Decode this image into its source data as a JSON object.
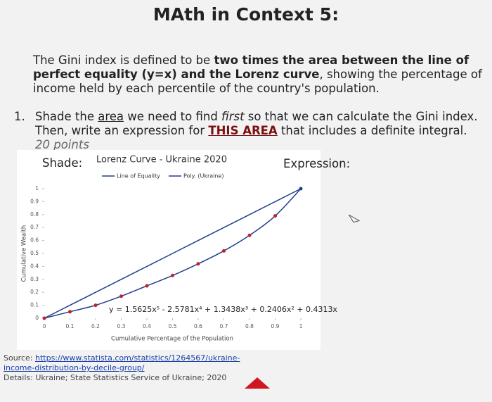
{
  "header": {
    "title": "MAth in Context 5:"
  },
  "intro": {
    "segments": [
      {
        "text": "The Gini index is defined to be ",
        "style": "normal"
      },
      {
        "text": "two times the area between the line of perfect equality (y=x) and the Lorenz curve",
        "style": "bold"
      },
      {
        "text": ", showing the percentage of income held by each percentile of the country's population.",
        "style": "normal"
      }
    ]
  },
  "question": {
    "number": "1.",
    "segments": [
      {
        "text": "Shade the ",
        "style": "normal"
      },
      {
        "text": "area",
        "style": "underline"
      },
      {
        "text": " we need to find ",
        "style": "normal"
      },
      {
        "text": "first",
        "style": "italic"
      },
      {
        "text": " so that we can calculate the Gini index.  Then, write an expression for ",
        "style": "normal"
      },
      {
        "text": "THIS AREA",
        "style": "bold-underline"
      },
      {
        "text": " that includes a definite integral. ",
        "style": "normal"
      },
      {
        "text": "20 points",
        "style": "italic-gray"
      }
    ],
    "shade_label": "Shade:",
    "expression_label": "Expression:"
  },
  "chart": {
    "type": "line",
    "title": "Lorenz Curve - Ukraine 2020",
    "x_label": "Cumulative Percentage of the Population",
    "y_label": "Cumulative Wealth",
    "equation": "y = 1.5625x⁵ - 2.5781x⁴ + 1.3438x³ + 0.2406x² + 0.4313x",
    "x": [
      0,
      0.1,
      0.2,
      0.3,
      0.4,
      0.5,
      0.6,
      0.7,
      0.8,
      0.9,
      1
    ],
    "series": [
      {
        "name": "Line of Equality",
        "color": "#1f3f8f",
        "values": [
          0,
          0.1,
          0.2,
          0.3,
          0.4,
          0.5,
          0.6,
          0.7,
          0.8,
          0.9,
          1
        ]
      },
      {
        "name": "Poly. (Ukraine)",
        "color": "#1f3f8f",
        "values": [
          0,
          0.05,
          0.1,
          0.17,
          0.25,
          0.33,
          0.42,
          0.52,
          0.64,
          0.79,
          1
        ]
      }
    ],
    "xlim": [
      0,
      1
    ],
    "ylim": [
      0,
      1
    ],
    "xticks": [
      0,
      0.1,
      0.2,
      0.3,
      0.4,
      0.5,
      0.6,
      0.7,
      0.8,
      0.9,
      1
    ],
    "yticks": [
      0,
      0.1,
      0.2,
      0.3,
      0.4,
      0.5,
      0.6,
      0.7,
      0.8,
      0.9,
      1
    ],
    "point_color": "#c0212a"
  },
  "source": {
    "label": "Source: ",
    "url": "https://www.statista.com/statistics/1264567/ukraine-income-distribution-by-decile-group/",
    "details": "Details: Ukraine; State Statistics Service of Ukraine; 2020"
  }
}
